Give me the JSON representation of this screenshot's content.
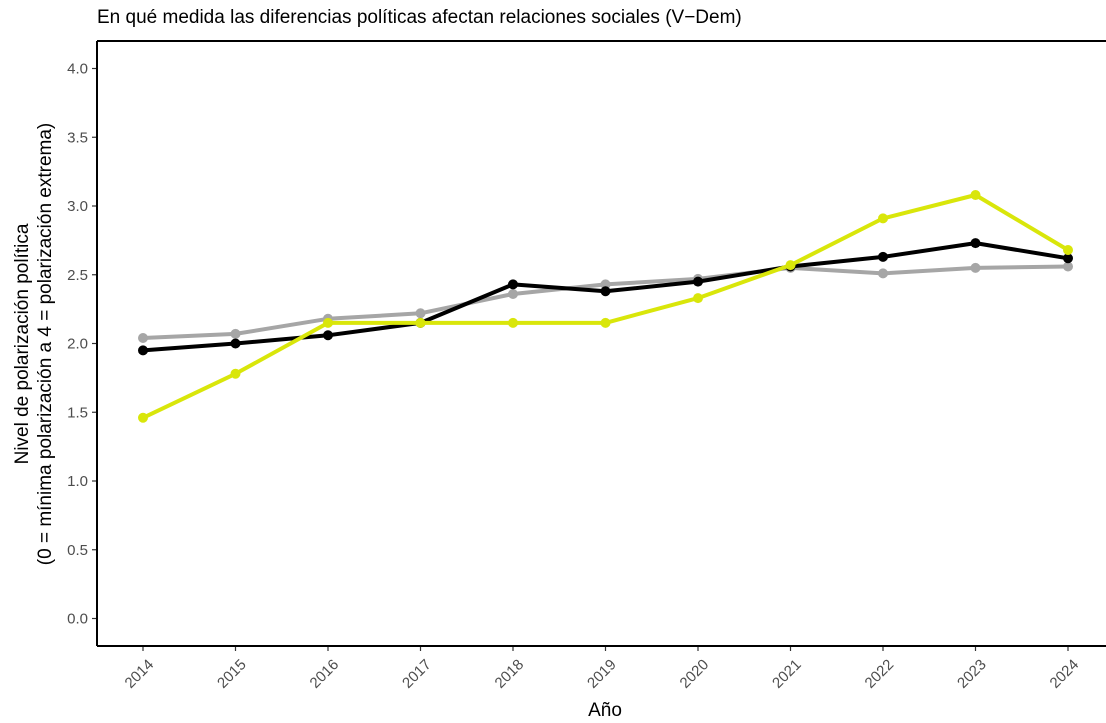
{
  "chart_data": {
    "type": "line",
    "title": "En qué medida las diferencias políticas afectan relaciones sociales (V−Dem)",
    "xlabel": "Año",
    "ylabel_lines": [
      "Nivel de polarización política",
      "(0 = mínima polarización a 4 = polarización extrema)"
    ],
    "x": [
      "2014",
      "2015",
      "2016",
      "2017",
      "2018",
      "2019",
      "2020",
      "2021",
      "2022",
      "2023",
      "2024"
    ],
    "ylim": [
      -0.2,
      4.2
    ],
    "yticks": [
      0.0,
      0.5,
      1.0,
      1.5,
      2.0,
      2.5,
      3.0,
      3.5,
      4.0
    ],
    "ytick_labels": [
      "0.0",
      "0.5",
      "1.0",
      "1.5",
      "2.0",
      "2.5",
      "3.0",
      "3.5",
      "4.0"
    ],
    "grid": false,
    "legend": "none",
    "series": [
      {
        "color": "#a6a6a6",
        "values": [
          2.04,
          2.07,
          2.18,
          2.22,
          2.36,
          2.43,
          2.47,
          2.55,
          2.51,
          2.55,
          2.56
        ]
      },
      {
        "color": "#000000",
        "values": [
          1.95,
          2.0,
          2.06,
          2.15,
          2.43,
          2.38,
          2.45,
          2.56,
          2.63,
          2.73,
          2.62
        ]
      },
      {
        "color": "#d9e60a",
        "values": [
          1.46,
          1.78,
          2.15,
          2.15,
          2.15,
          2.15,
          2.33,
          2.57,
          2.91,
          3.08,
          2.68
        ]
      }
    ]
  }
}
